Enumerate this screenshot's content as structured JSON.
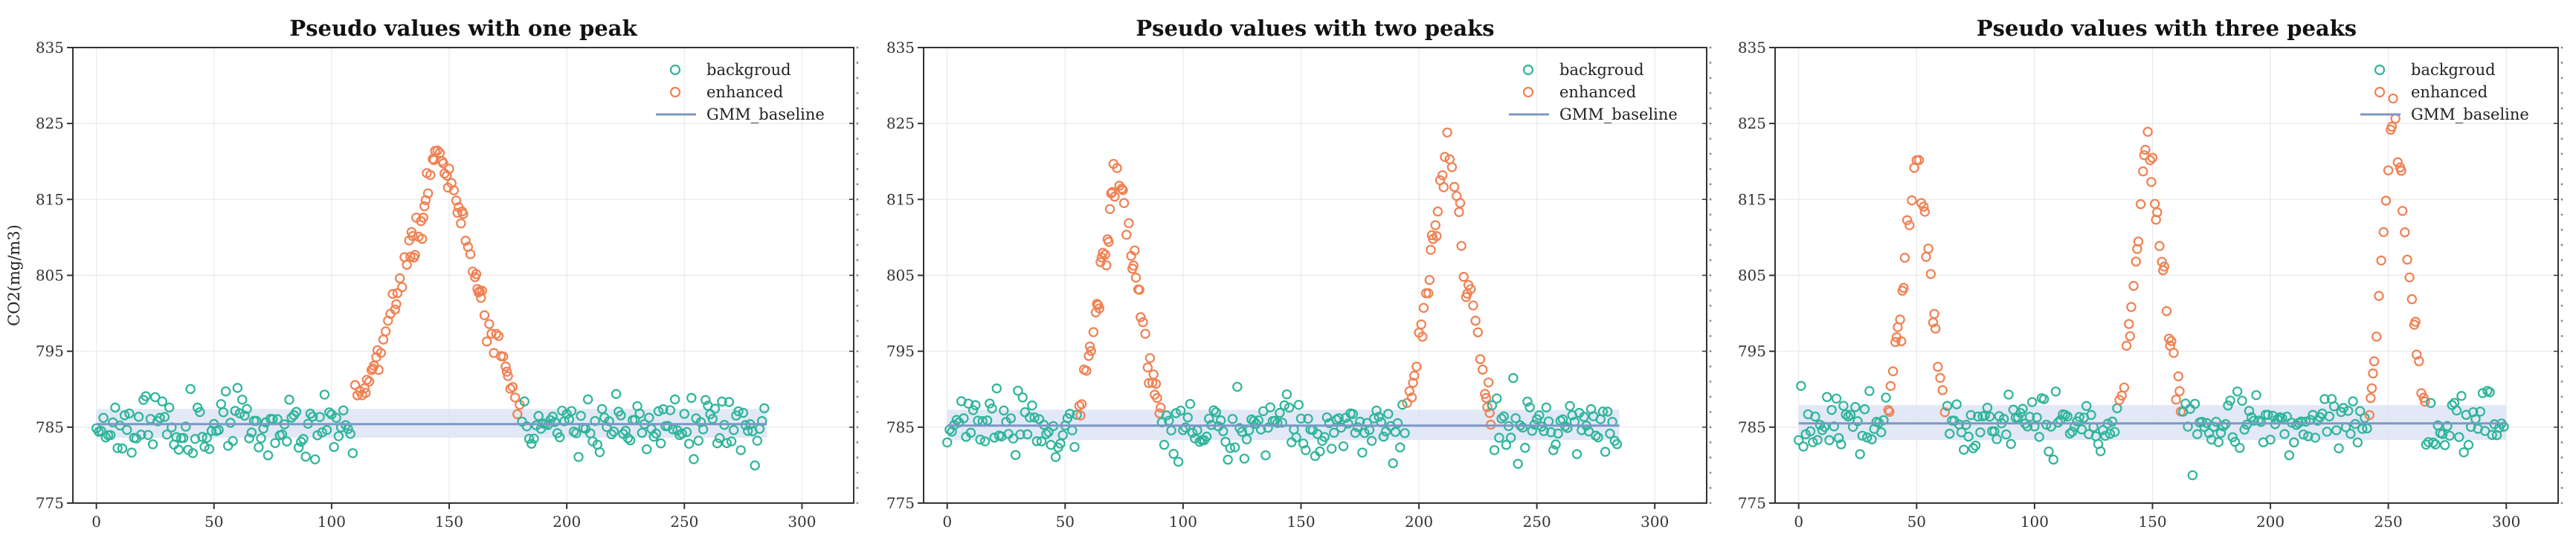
{
  "colors": {
    "background_points": "#2eb59b",
    "enhanced_points": "#f08153",
    "baseline_line": "#7d97c4",
    "baseline_band": "#dde4f3",
    "grid": "#e9e9e9",
    "axis": "#333333"
  },
  "chart_data": [
    {
      "type": "scatter",
      "title": "Pseudo values with one peak",
      "ylabel": "CO2(mg/m3)",
      "xlabel": "",
      "xlim": [
        -10,
        322
      ],
      "ylim": [
        775,
        835
      ],
      "xticks": [
        "0",
        "50",
        "100",
        "150",
        "200",
        "250",
        "300"
      ],
      "yticks": [
        "775",
        "785",
        "795",
        "805",
        "815",
        "825",
        "835"
      ],
      "legend": [
        "backgroud",
        "enhanced",
        "GMM_baseline"
      ],
      "legend_position": "top-right",
      "grid": true,
      "n_points": 285,
      "baseline": {
        "value": 785.4,
        "band": [
          783.6,
          787.4
        ]
      },
      "peaks": [
        {
          "start": 110,
          "center": 146,
          "end": 180,
          "max": 822
        }
      ]
    },
    {
      "type": "scatter",
      "title": "Pseudo values with two peaks",
      "ylabel": "",
      "xlabel": "",
      "xlim": [
        -10,
        322
      ],
      "ylim": [
        775,
        835
      ],
      "xticks": [
        "0",
        "50",
        "100",
        "150",
        "200",
        "250",
        "300"
      ],
      "yticks": [
        "775",
        "785",
        "795",
        "805",
        "815",
        "825",
        "835"
      ],
      "legend": [
        "backgroud",
        "enhanced",
        "GMM_baseline"
      ],
      "legend_position": "top-right",
      "grid": true,
      "n_points": 285,
      "baseline": {
        "value": 785.2,
        "band": [
          783.3,
          787.3
        ]
      },
      "peaks": [
        {
          "start": 56,
          "center": 72,
          "end": 90,
          "max": 820.5
        },
        {
          "start": 195,
          "center": 212,
          "end": 230,
          "max": 824
        }
      ]
    },
    {
      "type": "scatter",
      "title": "Pseudo values with three peaks",
      "ylabel": "",
      "xlabel": "",
      "xlim": [
        -10,
        322
      ],
      "ylim": [
        775,
        835
      ],
      "xticks": [
        "0",
        "50",
        "100",
        "150",
        "200",
        "250",
        "300"
      ],
      "yticks": [
        "775",
        "785",
        "795",
        "805",
        "815",
        "825",
        "835"
      ],
      "legend": [
        "backgroud",
        "enhanced",
        "GMM_baseline"
      ],
      "legend_position": "top-right",
      "grid": true,
      "n_points": 300,
      "baseline": {
        "value": 785.5,
        "band": [
          783.3,
          787.9
        ]
      },
      "peaks": [
        {
          "start": 38,
          "center": 50,
          "end": 62,
          "max": 823
        },
        {
          "start": 136,
          "center": 148,
          "end": 162,
          "max": 824
        },
        {
          "start": 242,
          "center": 252,
          "end": 265,
          "max": 829
        }
      ]
    }
  ]
}
